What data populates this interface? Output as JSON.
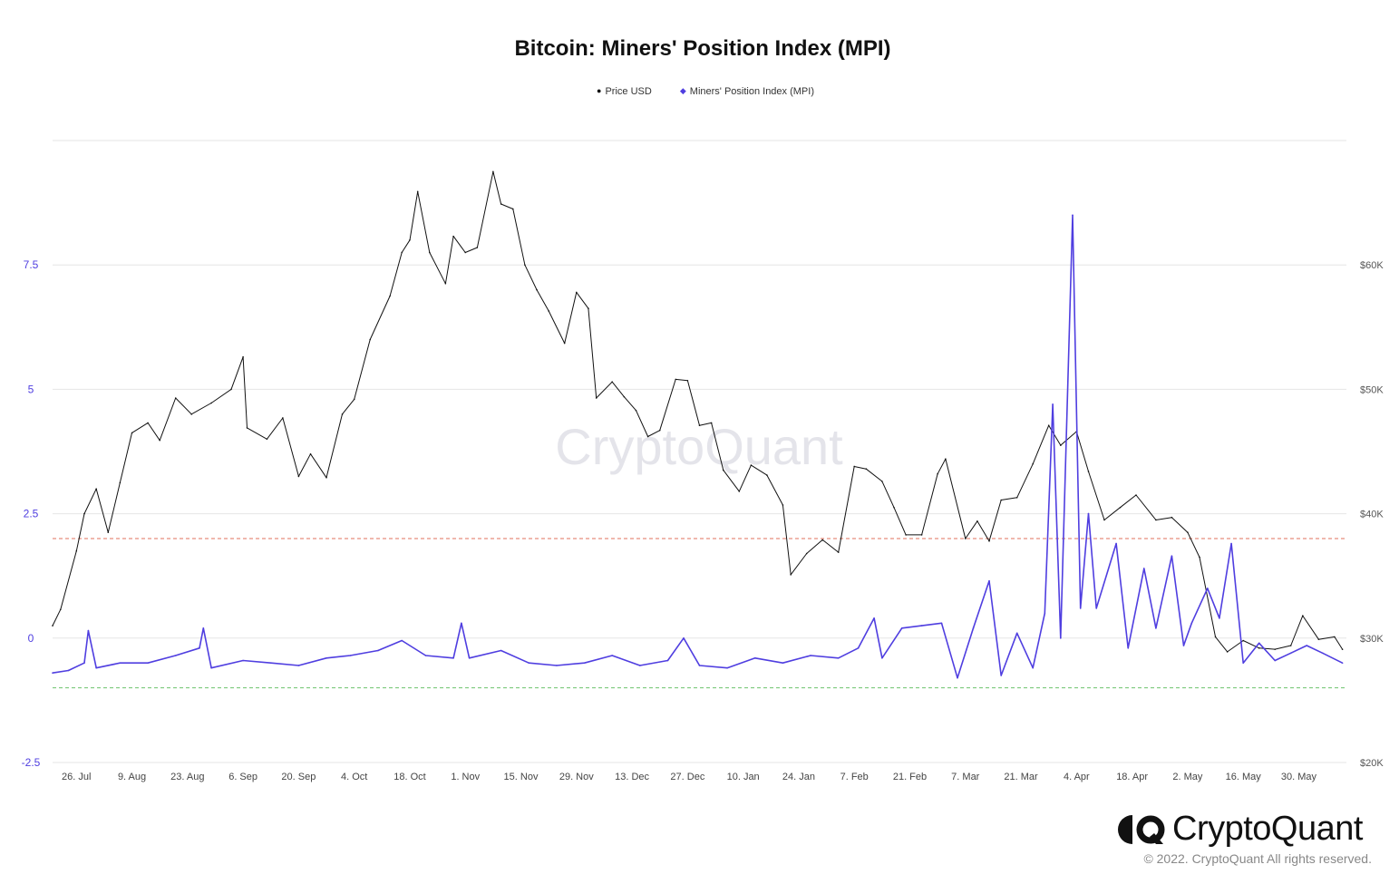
{
  "title": "Bitcoin: Miners' Position Index (MPI)",
  "legend": [
    {
      "label": "Price USD",
      "marker": "●",
      "color": "#111111"
    },
    {
      "label": "Miners' Position Index (MPI)",
      "marker": "◆",
      "color": "#4f3ee0"
    }
  ],
  "watermark": "CryptoQuant",
  "brand": {
    "name": "CryptoQuant",
    "copyright": "© 2022. CryptoQuant All rights reserved."
  },
  "colors": {
    "price": "#111111",
    "mpi": "#4f3ee0",
    "upper_threshold": "#e0705c",
    "lower_threshold": "#6cc26c",
    "grid": "#e6e6e6"
  },
  "chart_data": {
    "type": "line",
    "title": "Bitcoin: Miners' Position Index (MPI)",
    "x_tick_labels": [
      "26. Jul",
      "9. Aug",
      "23. Aug",
      "6. Sep",
      "20. Sep",
      "4. Oct",
      "18. Oct",
      "1. Nov",
      "15. Nov",
      "29. Nov",
      "13. Dec",
      "27. Dec",
      "10. Jan",
      "24. Jan",
      "7. Feb",
      "21. Feb",
      "7. Mar",
      "21. Mar",
      "4. Apr",
      "18. Apr",
      "2. May",
      "16. May",
      "30. May"
    ],
    "x_range": [
      "2021-07-20",
      "2022-06-11"
    ],
    "y_left": {
      "label": "MPI",
      "ticks": [
        "-2.5",
        "0",
        "2.5",
        "5",
        "7.5"
      ],
      "range": [
        -2.5,
        10
      ]
    },
    "y_right": {
      "label": "Price USD",
      "ticks": [
        "$20K",
        "$30K",
        "$40K",
        "$50K",
        "$60K"
      ],
      "range": [
        20000,
        70000
      ]
    },
    "thresholds": [
      {
        "axis": "left",
        "value": 2.0,
        "color": "#e0705c"
      },
      {
        "axis": "left",
        "value": -1.0,
        "color": "#6cc26c"
      }
    ],
    "grid": true,
    "legend_position": "top-center",
    "series": [
      {
        "name": "Price USD",
        "axis": "right",
        "color": "#111111",
        "points": [
          [
            "2021-07-20",
            31000
          ],
          [
            "2021-07-22",
            32300
          ],
          [
            "2021-07-26",
            37000
          ],
          [
            "2021-07-28",
            40000
          ],
          [
            "2021-07-31",
            42000
          ],
          [
            "2021-08-03",
            38500
          ],
          [
            "2021-08-06",
            42500
          ],
          [
            "2021-08-09",
            46500
          ],
          [
            "2021-08-13",
            47300
          ],
          [
            "2021-08-16",
            45900
          ],
          [
            "2021-08-20",
            49300
          ],
          [
            "2021-08-24",
            48000
          ],
          [
            "2021-08-29",
            48900
          ],
          [
            "2021-09-03",
            50000
          ],
          [
            "2021-09-06",
            52600
          ],
          [
            "2021-09-07",
            46900
          ],
          [
            "2021-09-12",
            46000
          ],
          [
            "2021-09-16",
            47700
          ],
          [
            "2021-09-20",
            43000
          ],
          [
            "2021-09-23",
            44800
          ],
          [
            "2021-09-27",
            42900
          ],
          [
            "2021-10-01",
            48000
          ],
          [
            "2021-10-04",
            49200
          ],
          [
            "2021-10-08",
            54000
          ],
          [
            "2021-10-13",
            57500
          ],
          [
            "2021-10-16",
            61000
          ],
          [
            "2021-10-18",
            62000
          ],
          [
            "2021-10-20",
            65900
          ],
          [
            "2021-10-23",
            61000
          ],
          [
            "2021-10-27",
            58500
          ],
          [
            "2021-10-29",
            62300
          ],
          [
            "2021-11-01",
            61000
          ],
          [
            "2021-11-04",
            61400
          ],
          [
            "2021-11-08",
            67500
          ],
          [
            "2021-11-10",
            64900
          ],
          [
            "2021-11-13",
            64500
          ],
          [
            "2021-11-16",
            60000
          ],
          [
            "2021-11-19",
            58000
          ],
          [
            "2021-11-22",
            56300
          ],
          [
            "2021-11-26",
            53700
          ],
          [
            "2021-11-29",
            57800
          ],
          [
            "2021-12-02",
            56500
          ],
          [
            "2021-12-04",
            49300
          ],
          [
            "2021-12-08",
            50600
          ],
          [
            "2021-12-11",
            49400
          ],
          [
            "2021-12-14",
            48300
          ],
          [
            "2021-12-17",
            46200
          ],
          [
            "2021-12-20",
            46700
          ],
          [
            "2021-12-24",
            50800
          ],
          [
            "2021-12-27",
            50700
          ],
          [
            "2021-12-30",
            47100
          ],
          [
            "2022-01-02",
            47300
          ],
          [
            "2022-01-05",
            43500
          ],
          [
            "2022-01-09",
            41800
          ],
          [
            "2022-01-12",
            43900
          ],
          [
            "2022-01-16",
            43100
          ],
          [
            "2022-01-20",
            40700
          ],
          [
            "2022-01-22",
            35100
          ],
          [
            "2022-01-26",
            36800
          ],
          [
            "2022-01-30",
            37900
          ],
          [
            "2022-02-03",
            36900
          ],
          [
            "2022-02-07",
            43800
          ],
          [
            "2022-02-10",
            43600
          ],
          [
            "2022-02-14",
            42600
          ],
          [
            "2022-02-17",
            40500
          ],
          [
            "2022-02-20",
            38300
          ],
          [
            "2022-02-24",
            38300
          ],
          [
            "2022-02-28",
            43200
          ],
          [
            "2022-03-02",
            44400
          ],
          [
            "2022-03-07",
            38000
          ],
          [
            "2022-03-10",
            39400
          ],
          [
            "2022-03-13",
            37800
          ],
          [
            "2022-03-16",
            41100
          ],
          [
            "2022-03-20",
            41300
          ],
          [
            "2022-03-24",
            44000
          ],
          [
            "2022-03-28",
            47100
          ],
          [
            "2022-03-31",
            45500
          ],
          [
            "2022-04-04",
            46600
          ],
          [
            "2022-04-07",
            43400
          ],
          [
            "2022-04-11",
            39500
          ],
          [
            "2022-04-15",
            40500
          ],
          [
            "2022-04-19",
            41500
          ],
          [
            "2022-04-24",
            39500
          ],
          [
            "2022-04-28",
            39700
          ],
          [
            "2022-05-02",
            38500
          ],
          [
            "2022-05-05",
            36500
          ],
          [
            "2022-05-09",
            30100
          ],
          [
            "2022-05-12",
            28900
          ],
          [
            "2022-05-16",
            29800
          ],
          [
            "2022-05-20",
            29200
          ],
          [
            "2022-05-24",
            29100
          ],
          [
            "2022-05-28",
            29400
          ],
          [
            "2022-05-31",
            31800
          ],
          [
            "2022-06-04",
            29900
          ],
          [
            "2022-06-08",
            30100
          ],
          [
            "2022-06-10",
            29100
          ]
        ]
      },
      {
        "name": "Miners' Position Index (MPI)",
        "axis": "left",
        "color": "#4f3ee0",
        "points": [
          [
            "2021-07-20",
            -0.7
          ],
          [
            "2021-07-24",
            -0.65
          ],
          [
            "2021-07-28",
            -0.5
          ],
          [
            "2021-07-29",
            0.15
          ],
          [
            "2021-07-31",
            -0.6
          ],
          [
            "2021-08-06",
            -0.5
          ],
          [
            "2021-08-13",
            -0.5
          ],
          [
            "2021-08-20",
            -0.35
          ],
          [
            "2021-08-26",
            -0.2
          ],
          [
            "2021-08-27",
            0.2
          ],
          [
            "2021-08-29",
            -0.6
          ],
          [
            "2021-09-06",
            -0.45
          ],
          [
            "2021-09-13",
            -0.5
          ],
          [
            "2021-09-20",
            -0.55
          ],
          [
            "2021-09-27",
            -0.4
          ],
          [
            "2021-10-03",
            -0.35
          ],
          [
            "2021-10-10",
            -0.25
          ],
          [
            "2021-10-16",
            -0.05
          ],
          [
            "2021-10-22",
            -0.35
          ],
          [
            "2021-10-29",
            -0.4
          ],
          [
            "2021-10-31",
            0.3
          ],
          [
            "2021-11-02",
            -0.4
          ],
          [
            "2021-11-10",
            -0.25
          ],
          [
            "2021-11-17",
            -0.5
          ],
          [
            "2021-11-24",
            -0.55
          ],
          [
            "2021-12-01",
            -0.5
          ],
          [
            "2021-12-08",
            -0.35
          ],
          [
            "2021-12-15",
            -0.55
          ],
          [
            "2021-12-22",
            -0.45
          ],
          [
            "2021-12-26",
            0.0
          ],
          [
            "2021-12-30",
            -0.55
          ],
          [
            "2022-01-06",
            -0.6
          ],
          [
            "2022-01-13",
            -0.4
          ],
          [
            "2022-01-20",
            -0.5
          ],
          [
            "2022-01-27",
            -0.35
          ],
          [
            "2022-02-03",
            -0.4
          ],
          [
            "2022-02-08",
            -0.2
          ],
          [
            "2022-02-12",
            0.4
          ],
          [
            "2022-02-14",
            -0.4
          ],
          [
            "2022-02-19",
            0.2
          ],
          [
            "2022-02-24",
            0.25
          ],
          [
            "2022-03-01",
            0.3
          ],
          [
            "2022-03-05",
            -0.8
          ],
          [
            "2022-03-09",
            0.2
          ],
          [
            "2022-03-13",
            1.15
          ],
          [
            "2022-03-16",
            -0.75
          ],
          [
            "2022-03-20",
            0.1
          ],
          [
            "2022-03-24",
            -0.6
          ],
          [
            "2022-03-27",
            0.5
          ],
          [
            "2022-03-29",
            4.7
          ],
          [
            "2022-03-31",
            0.0
          ],
          [
            "2022-04-03",
            8.5
          ],
          [
            "2022-04-05",
            0.6
          ],
          [
            "2022-04-07",
            2.5
          ],
          [
            "2022-04-09",
            0.6
          ],
          [
            "2022-04-14",
            1.9
          ],
          [
            "2022-04-17",
            -0.2
          ],
          [
            "2022-04-21",
            1.4
          ],
          [
            "2022-04-24",
            0.2
          ],
          [
            "2022-04-28",
            1.65
          ],
          [
            "2022-05-01",
            -0.15
          ],
          [
            "2022-05-03",
            0.3
          ],
          [
            "2022-05-07",
            1.0
          ],
          [
            "2022-05-10",
            0.4
          ],
          [
            "2022-05-13",
            1.9
          ],
          [
            "2022-05-16",
            -0.5
          ],
          [
            "2022-05-20",
            -0.1
          ],
          [
            "2022-05-24",
            -0.45
          ],
          [
            "2022-05-28",
            -0.3
          ],
          [
            "2022-06-01",
            -0.15
          ],
          [
            "2022-06-05",
            -0.3
          ],
          [
            "2022-06-10",
            -0.5
          ]
        ]
      }
    ]
  }
}
